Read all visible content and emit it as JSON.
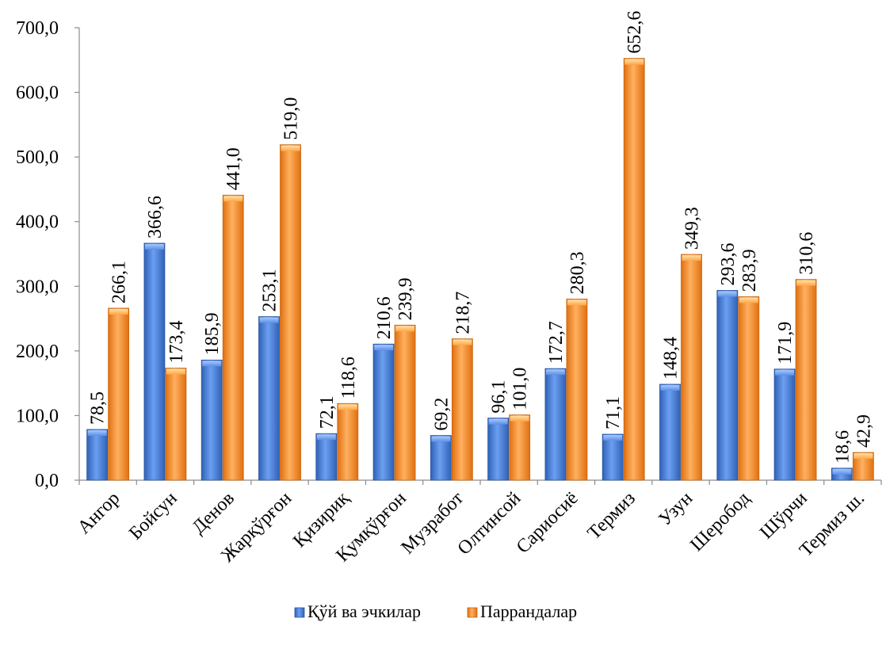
{
  "chart_data": {
    "type": "bar",
    "title": "",
    "xlabel": "",
    "ylabel": "",
    "ylim": [
      0,
      700
    ],
    "yticks": [
      0,
      100,
      200,
      300,
      400,
      500,
      600,
      700
    ],
    "ytick_labels": [
      "0,0",
      "100,0",
      "200,0",
      "300,0",
      "400,0",
      "500,0",
      "600,0",
      "700,0"
    ],
    "grid": false,
    "legend_position": "bottom",
    "categories": [
      "Ангор",
      "Бойсун",
      "Денов",
      "Жарқўрғон",
      "Қизириқ",
      "Қумқўрғон",
      "Музработ",
      "Олтинсой",
      "Сариосиё",
      "Термиз",
      "Узун",
      "Шеробод",
      "Шўрчи",
      "Термиз ш."
    ],
    "series": [
      {
        "name": "Қўй ва эчкилар",
        "color": "#4a7fd4",
        "values": [
          78.5,
          366.6,
          185.9,
          253.1,
          72.1,
          210.6,
          69.2,
          96.1,
          172.7,
          71.1,
          148.4,
          293.6,
          171.9,
          18.6
        ],
        "labels": [
          "78,5",
          "366,6",
          "185,9",
          "253,1",
          "72,1",
          "210,6",
          "69,2",
          "96,1",
          "172,7",
          "71,1",
          "148,4",
          "293,6",
          "171,9",
          "18,6"
        ]
      },
      {
        "name": "Паррандалар",
        "color": "#f28c28",
        "values": [
          266.1,
          173.4,
          441.0,
          519.0,
          118.6,
          239.9,
          218.7,
          101.0,
          280.3,
          652.6,
          349.3,
          283.9,
          310.6,
          42.9
        ],
        "labels": [
          "266,1",
          "173,4",
          "441,0",
          "519,0",
          "118,6",
          "239,9",
          "218,7",
          "101,0",
          "280,3",
          "652,6",
          "349,3",
          "283,9",
          "310,6",
          "42,9"
        ]
      }
    ]
  }
}
